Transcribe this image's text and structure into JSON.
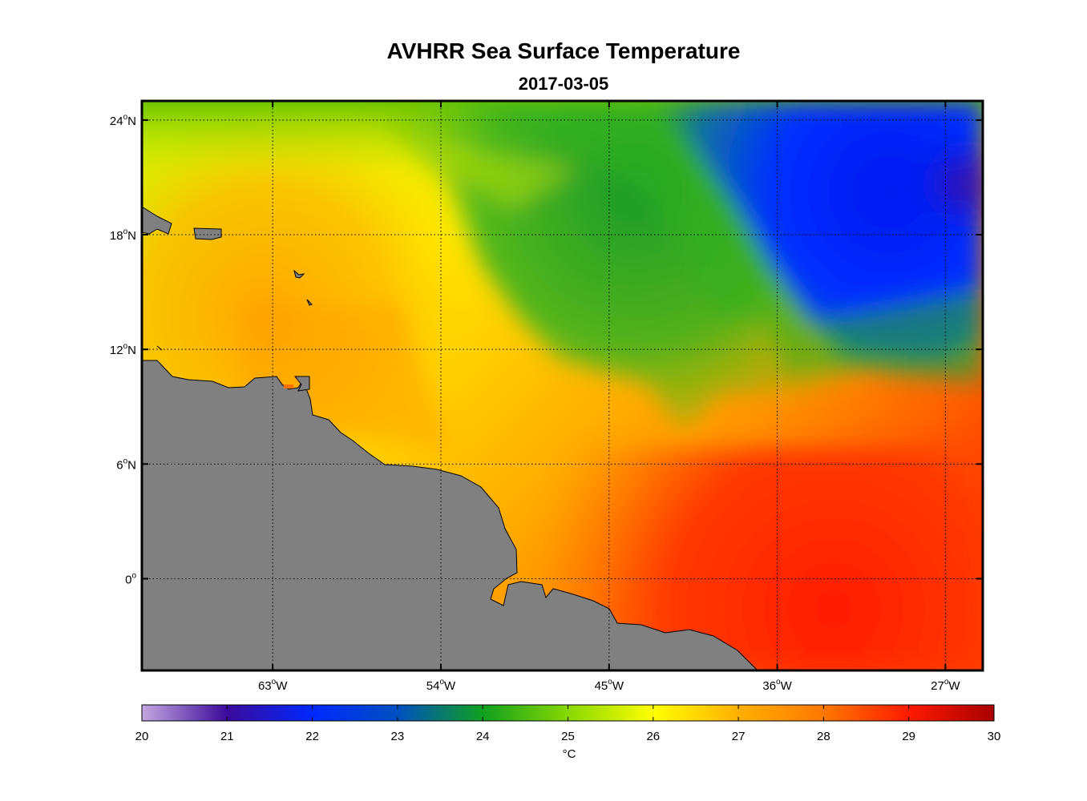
{
  "title": "AVHRR Sea Surface Temperature",
  "subtitle": "2017-03-05",
  "map": {
    "lon_ticks": [
      {
        "value": -63,
        "label": "63",
        "hemi": "W"
      },
      {
        "value": -54,
        "label": "54",
        "hemi": "W"
      },
      {
        "value": -45,
        "label": "45",
        "hemi": "W"
      },
      {
        "value": -36,
        "label": "36",
        "hemi": "W"
      },
      {
        "value": -27,
        "label": "27",
        "hemi": "W"
      }
    ],
    "lat_ticks": [
      {
        "value": 24,
        "label": "24",
        "hemi": "N"
      },
      {
        "value": 18,
        "label": "18",
        "hemi": "N"
      },
      {
        "value": 12,
        "label": "12",
        "hemi": "N"
      },
      {
        "value": 6,
        "label": "6",
        "hemi": "N"
      },
      {
        "value": 0,
        "label": "0",
        "hemi": ""
      }
    ],
    "lon_range": [
      -70,
      -25
    ],
    "lat_range": [
      -4.8,
      25
    ],
    "land_color": "#808080",
    "grid": "dotted"
  },
  "colorbar": {
    "ticks": [
      "20",
      "21",
      "22",
      "23",
      "24",
      "25",
      "26",
      "27",
      "28",
      "29",
      "30"
    ],
    "unit": "°C",
    "range": [
      20,
      30
    ],
    "colors": [
      "#b9a0dc",
      "#3a0a9a",
      "#0028ff",
      "#0050d0",
      "#1aa020",
      "#88d800",
      "#ffff00",
      "#ffb000",
      "#ff7a00",
      "#ff1a00",
      "#b00000"
    ]
  }
}
